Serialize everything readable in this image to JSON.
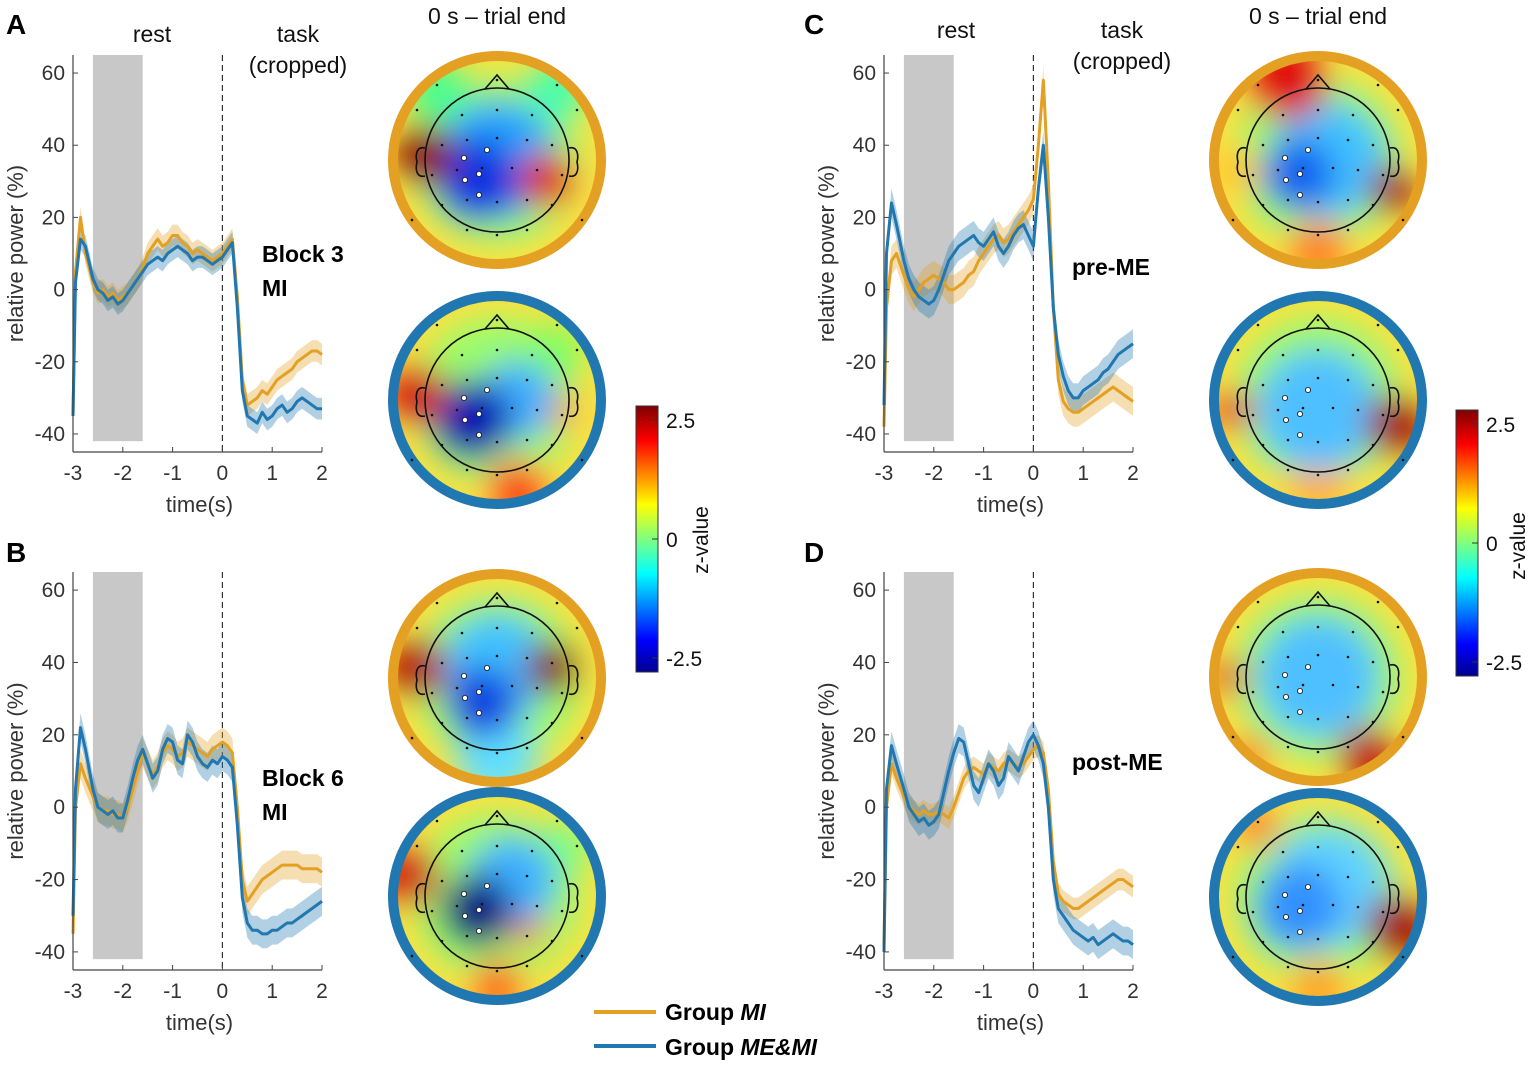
{
  "colors": {
    "group_mi": "#E3A023",
    "group_memi": "#2177B0",
    "shade": "#C8C8C8"
  },
  "headers": {
    "rest": "rest",
    "task_line1": "task",
    "task_line2": "(cropped)",
    "topo": "0 s – trial end"
  },
  "colorbar": {
    "label": "z-value",
    "max_label": "2.5",
    "mid_label": "0",
    "min_label": "-2.5"
  },
  "legend": {
    "mi_prefix": "Group",
    "mi_name": "MI",
    "memi_prefix": "Group",
    "memi_name": "ME&MI"
  },
  "chart_data": [
    {
      "panel": "A",
      "type": "line",
      "condition_line1": "Block 3",
      "condition_line2": "MI",
      "xlabel": "time(s)",
      "ylabel": "relative power (%)",
      "xlim": [
        -3,
        2
      ],
      "ylim": [
        -45,
        65
      ],
      "xticks": [
        "-3",
        "-2",
        "-1",
        "0",
        "1",
        "2"
      ],
      "yticks": [
        "-40",
        "-20",
        "0",
        "20",
        "40",
        "60"
      ],
      "rest_window": [
        -2.6,
        -1.6
      ],
      "series": [
        {
          "name": "Group MI",
          "color": "#E3A023",
          "x": [
            -3.0,
            -2.95,
            -2.85,
            -2.75,
            -2.6,
            -2.5,
            -2.4,
            -2.3,
            -2.2,
            -2.1,
            -2.0,
            -1.9,
            -1.8,
            -1.7,
            -1.6,
            -1.5,
            -1.4,
            -1.3,
            -1.2,
            -1.1,
            -1.0,
            -0.9,
            -0.8,
            -0.7,
            -0.6,
            -0.5,
            -0.4,
            -0.3,
            -0.2,
            -0.1,
            0.0,
            0.1,
            0.2,
            0.3,
            0.4,
            0.5,
            0.6,
            0.7,
            0.8,
            0.9,
            1.0,
            1.1,
            1.2,
            1.3,
            1.4,
            1.5,
            1.6,
            1.7,
            1.8,
            1.9,
            2.0
          ],
          "y": [
            -35,
            5,
            20,
            10,
            2,
            -1,
            0,
            -2,
            -1,
            -3,
            -2,
            -1,
            1,
            3,
            6,
            10,
            12,
            14,
            12,
            13,
            15,
            15,
            13,
            12,
            10,
            11,
            10,
            9,
            8,
            9,
            10,
            12,
            14,
            -2,
            -25,
            -32,
            -31,
            -30,
            -28,
            -29,
            -27,
            -25,
            -24,
            -23,
            -22,
            -20,
            -19,
            -18,
            -17,
            -17,
            -18
          ],
          "band": 3
        },
        {
          "name": "Group ME&MI",
          "color": "#2177B0",
          "x": [
            -3.0,
            -2.95,
            -2.85,
            -2.75,
            -2.6,
            -2.5,
            -2.4,
            -2.3,
            -2.2,
            -2.1,
            -2.0,
            -1.9,
            -1.8,
            -1.7,
            -1.6,
            -1.5,
            -1.4,
            -1.3,
            -1.2,
            -1.1,
            -1.0,
            -0.9,
            -0.8,
            -0.7,
            -0.6,
            -0.5,
            -0.4,
            -0.3,
            -0.2,
            -0.1,
            0.0,
            0.1,
            0.2,
            0.3,
            0.4,
            0.5,
            0.6,
            0.7,
            0.8,
            0.9,
            1.0,
            1.1,
            1.2,
            1.3,
            1.4,
            1.5,
            1.6,
            1.7,
            1.8,
            1.9,
            2.0
          ],
          "y": [
            -35,
            2,
            14,
            12,
            3,
            0,
            -1,
            -3,
            -2,
            -4,
            -3,
            -1,
            1,
            3,
            5,
            7,
            8,
            9,
            8,
            10,
            11,
            12,
            11,
            10,
            8,
            9,
            9,
            8,
            7,
            8,
            9,
            11,
            13,
            -5,
            -28,
            -35,
            -36,
            -37,
            -34,
            -36,
            -35,
            -33,
            -32,
            -34,
            -33,
            -31,
            -30,
            -31,
            -32,
            -33,
            -33
          ],
          "band": 3
        }
      ]
    },
    {
      "panel": "B",
      "type": "line",
      "condition_line1": "Block 6",
      "condition_line2": "MI",
      "xlabel": "time(s)",
      "ylabel": "relative power (%)",
      "xlim": [
        -3,
        2
      ],
      "ylim": [
        -45,
        65
      ],
      "xticks": [
        "-3",
        "-2",
        "-1",
        "0",
        "1",
        "2"
      ],
      "yticks": [
        "-40",
        "-20",
        "0",
        "20",
        "40",
        "60"
      ],
      "rest_window": [
        -2.6,
        -1.6
      ],
      "series": [
        {
          "name": "Group MI",
          "color": "#E3A023",
          "x": [
            -3.0,
            -2.95,
            -2.85,
            -2.75,
            -2.6,
            -2.5,
            -2.4,
            -2.3,
            -2.2,
            -2.1,
            -2.0,
            -1.9,
            -1.8,
            -1.7,
            -1.6,
            -1.5,
            -1.4,
            -1.3,
            -1.2,
            -1.1,
            -1.0,
            -0.9,
            -0.8,
            -0.7,
            -0.6,
            -0.5,
            -0.4,
            -0.3,
            -0.2,
            -0.1,
            0.0,
            0.1,
            0.2,
            0.3,
            0.4,
            0.5,
            0.6,
            0.7,
            0.8,
            0.9,
            1.0,
            1.1,
            1.2,
            1.3,
            1.4,
            1.5,
            1.6,
            1.7,
            1.8,
            1.9,
            2.0
          ],
          "y": [
            -35,
            0,
            12,
            8,
            3,
            0,
            -1,
            -1,
            -2,
            -2,
            -3,
            0,
            5,
            10,
            15,
            12,
            9,
            11,
            15,
            17,
            16,
            14,
            15,
            18,
            17,
            16,
            15,
            14,
            16,
            17,
            18,
            17,
            15,
            0,
            -20,
            -26,
            -24,
            -22,
            -20,
            -19,
            -18,
            -17,
            -16,
            -16,
            -16,
            -16,
            -17,
            -17,
            -17,
            -17,
            -18
          ],
          "band": 4
        },
        {
          "name": "Group ME&MI",
          "color": "#2177B0",
          "x": [
            -3.0,
            -2.95,
            -2.85,
            -2.75,
            -2.6,
            -2.5,
            -2.4,
            -2.3,
            -2.2,
            -2.1,
            -2.0,
            -1.9,
            -1.8,
            -1.7,
            -1.6,
            -1.5,
            -1.4,
            -1.3,
            -1.2,
            -1.1,
            -1.0,
            -0.9,
            -0.8,
            -0.7,
            -0.6,
            -0.5,
            -0.4,
            -0.3,
            -0.2,
            -0.1,
            0.0,
            0.1,
            0.2,
            0.3,
            0.4,
            0.5,
            0.6,
            0.7,
            0.8,
            0.9,
            1.0,
            1.1,
            1.2,
            1.3,
            1.4,
            1.5,
            1.6,
            1.7,
            1.8,
            1.9,
            2.0
          ],
          "y": [
            -30,
            5,
            22,
            16,
            5,
            0,
            -1,
            -2,
            -1,
            -3,
            -3,
            2,
            8,
            13,
            16,
            12,
            8,
            10,
            16,
            19,
            18,
            13,
            12,
            20,
            18,
            14,
            12,
            11,
            13,
            12,
            14,
            13,
            11,
            -5,
            -25,
            -32,
            -34,
            -34,
            -35,
            -35,
            -34,
            -34,
            -33,
            -32,
            -32,
            -31,
            -30,
            -29,
            -28,
            -27,
            -26
          ],
          "band": 4
        }
      ]
    },
    {
      "panel": "C",
      "type": "line",
      "condition_line1": "pre-ME",
      "condition_line2": "",
      "xlabel": "time(s)",
      "ylabel": "relative power (%)",
      "xlim": [
        -3,
        2
      ],
      "ylim": [
        -45,
        65
      ],
      "xticks": [
        "-3",
        "-2",
        "-1",
        "0",
        "1",
        "2"
      ],
      "yticks": [
        "-40",
        "-20",
        "0",
        "20",
        "40",
        "60"
      ],
      "rest_window": [
        -2.6,
        -1.6
      ],
      "series": [
        {
          "name": "Group MI",
          "color": "#E3A023",
          "x": [
            -3.0,
            -2.95,
            -2.85,
            -2.75,
            -2.6,
            -2.5,
            -2.4,
            -2.3,
            -2.2,
            -2.1,
            -2.0,
            -1.9,
            -1.8,
            -1.7,
            -1.6,
            -1.5,
            -1.4,
            -1.3,
            -1.2,
            -1.1,
            -1.0,
            -0.9,
            -0.8,
            -0.7,
            -0.6,
            -0.5,
            -0.4,
            -0.3,
            -0.2,
            -0.1,
            0.0,
            0.1,
            0.2,
            0.3,
            0.4,
            0.5,
            0.6,
            0.7,
            0.8,
            0.9,
            1.0,
            1.1,
            1.2,
            1.3,
            1.4,
            1.5,
            1.6,
            1.7,
            1.8,
            1.9,
            2.0
          ],
          "y": [
            -38,
            -5,
            8,
            10,
            4,
            0,
            -2,
            0,
            2,
            3,
            4,
            3,
            2,
            0,
            0,
            1,
            2,
            4,
            5,
            8,
            10,
            12,
            14,
            15,
            13,
            14,
            16,
            18,
            20,
            22,
            25,
            40,
            58,
            30,
            -5,
            -25,
            -31,
            -33,
            -34,
            -34,
            -33,
            -32,
            -31,
            -30,
            -29,
            -28,
            -27,
            -28,
            -29,
            -30,
            -31
          ],
          "band": 4
        },
        {
          "name": "Group ME&MI",
          "color": "#2177B0",
          "x": [
            -3.0,
            -2.95,
            -2.85,
            -2.75,
            -2.6,
            -2.5,
            -2.4,
            -2.3,
            -2.2,
            -2.1,
            -2.0,
            -1.9,
            -1.8,
            -1.7,
            -1.6,
            -1.5,
            -1.4,
            -1.3,
            -1.2,
            -1.1,
            -1.0,
            -0.9,
            -0.8,
            -0.7,
            -0.6,
            -0.5,
            -0.4,
            -0.3,
            -0.2,
            -0.1,
            0.0,
            0.1,
            0.2,
            0.3,
            0.4,
            0.5,
            0.6,
            0.7,
            0.8,
            0.9,
            1.0,
            1.1,
            1.2,
            1.3,
            1.4,
            1.5,
            1.6,
            1.7,
            1.8,
            1.9,
            2.0
          ],
          "y": [
            -32,
            10,
            24,
            18,
            8,
            3,
            0,
            -2,
            -3,
            -4,
            -3,
            0,
            4,
            8,
            10,
            12,
            13,
            14,
            15,
            13,
            12,
            14,
            16,
            12,
            10,
            12,
            15,
            17,
            18,
            15,
            12,
            28,
            40,
            20,
            -5,
            -18,
            -24,
            -28,
            -30,
            -30,
            -28,
            -27,
            -26,
            -25,
            -23,
            -22,
            -20,
            -18,
            -17,
            -16,
            -15
          ],
          "band": 4
        }
      ]
    },
    {
      "panel": "D",
      "type": "line",
      "condition_line1": "post-ME",
      "condition_line2": "",
      "xlabel": "time(s)",
      "ylabel": "relative power (%)",
      "xlim": [
        -3,
        2
      ],
      "ylim": [
        -45,
        65
      ],
      "xticks": [
        "-3",
        "-2",
        "-1",
        "0",
        "1",
        "2"
      ],
      "yticks": [
        "-40",
        "-20",
        "0",
        "20",
        "40",
        "60"
      ],
      "rest_window": [
        -2.6,
        -1.6
      ],
      "series": [
        {
          "name": "Group MI",
          "color": "#E3A023",
          "x": [
            -3.0,
            -2.95,
            -2.85,
            -2.75,
            -2.6,
            -2.5,
            -2.4,
            -2.3,
            -2.2,
            -2.1,
            -2.0,
            -1.9,
            -1.8,
            -1.7,
            -1.6,
            -1.5,
            -1.4,
            -1.3,
            -1.2,
            -1.1,
            -1.0,
            -0.9,
            -0.8,
            -0.7,
            -0.6,
            -0.5,
            -0.4,
            -0.3,
            -0.2,
            -0.1,
            0.0,
            0.1,
            0.2,
            0.3,
            0.4,
            0.5,
            0.6,
            0.7,
            0.8,
            0.9,
            1.0,
            1.1,
            1.2,
            1.3,
            1.4,
            1.5,
            1.6,
            1.7,
            1.8,
            1.9,
            2.0
          ],
          "y": [
            -38,
            0,
            12,
            8,
            3,
            0,
            -1,
            -2,
            -1,
            -2,
            -2,
            -1,
            -2,
            -3,
            0,
            4,
            8,
            10,
            11,
            10,
            9,
            12,
            11,
            10,
            12,
            13,
            12,
            11,
            12,
            14,
            16,
            17,
            15,
            5,
            -15,
            -24,
            -26,
            -27,
            -28,
            -28,
            -27,
            -26,
            -25,
            -24,
            -23,
            -22,
            -21,
            -20,
            -20,
            -21,
            -22
          ],
          "band": 3
        },
        {
          "name": "Group ME&MI",
          "color": "#2177B0",
          "x": [
            -3.0,
            -2.95,
            -2.85,
            -2.75,
            -2.6,
            -2.5,
            -2.4,
            -2.3,
            -2.2,
            -2.1,
            -2.0,
            -1.9,
            -1.8,
            -1.7,
            -1.6,
            -1.5,
            -1.4,
            -1.3,
            -1.2,
            -1.1,
            -1.0,
            -0.9,
            -0.8,
            -0.7,
            -0.6,
            -0.5,
            -0.4,
            -0.3,
            -0.2,
            -0.1,
            0.0,
            0.1,
            0.2,
            0.3,
            0.4,
            0.5,
            0.6,
            0.7,
            0.8,
            0.9,
            1.0,
            1.1,
            1.2,
            1.3,
            1.4,
            1.5,
            1.6,
            1.7,
            1.8,
            1.9,
            2.0
          ],
          "y": [
            -40,
            5,
            17,
            12,
            5,
            0,
            -2,
            -4,
            -3,
            -5,
            -4,
            -2,
            4,
            10,
            15,
            19,
            18,
            12,
            6,
            4,
            8,
            12,
            10,
            6,
            8,
            14,
            12,
            10,
            14,
            18,
            20,
            17,
            12,
            0,
            -20,
            -28,
            -30,
            -32,
            -34,
            -35,
            -36,
            -37,
            -36,
            -38,
            -37,
            -36,
            -35,
            -36,
            -37,
            -37,
            -38
          ],
          "band": 4
        }
      ]
    }
  ]
}
